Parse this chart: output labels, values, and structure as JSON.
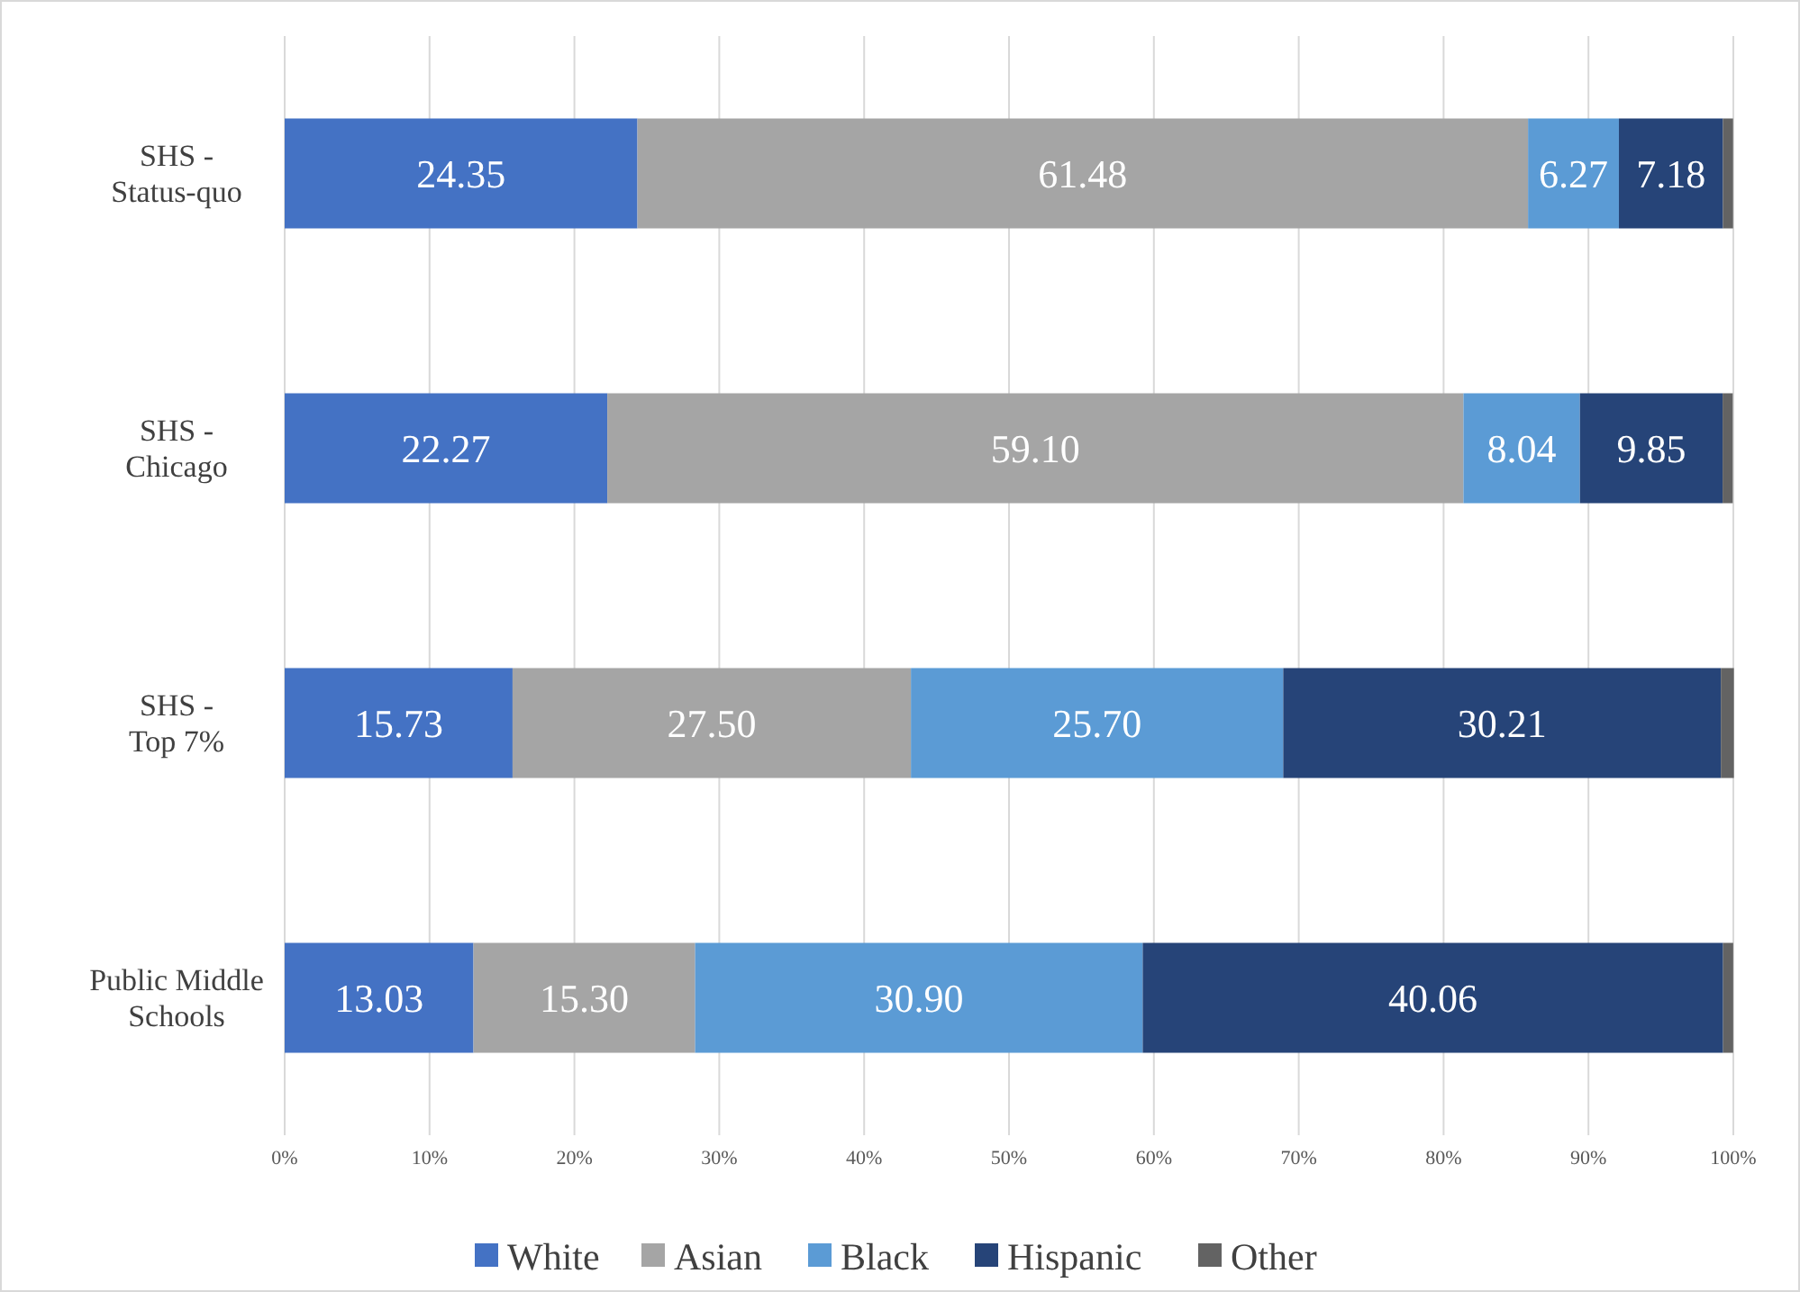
{
  "chart_data": {
    "type": "bar",
    "orientation": "horizontal",
    "stacked": true,
    "categories": [
      "SHS - Status-quo",
      "SHS - Chicago",
      "SHS - Top 7%",
      "Public Middle Schools"
    ],
    "series": [
      {
        "name": "White",
        "color": "#4472c4",
        "values": [
          24.35,
          22.27,
          15.73,
          13.03
        ],
        "value_labels": [
          "24.35",
          "22.27",
          "15.73",
          "13.03"
        ]
      },
      {
        "name": "Asian",
        "color": "#a5a5a5",
        "values": [
          61.48,
          59.1,
          27.5,
          15.3
        ],
        "value_labels": [
          "61.48",
          "59.10",
          "27.50",
          "15.30"
        ]
      },
      {
        "name": "Black",
        "color": "#5b9bd5",
        "values": [
          6.27,
          8.04,
          25.7,
          30.9
        ],
        "value_labels": [
          "6.27",
          "8.04",
          "25.70",
          "30.90"
        ]
      },
      {
        "name": "Hispanic",
        "color": "#264478",
        "values": [
          7.18,
          9.85,
          30.21,
          40.06
        ],
        "value_labels": [
          "7.18",
          "9.85",
          "30.21",
          "40.06"
        ]
      },
      {
        "name": "Other",
        "color": "#636363",
        "values": [
          0.7,
          0.7,
          0.9,
          0.7
        ],
        "value_labels": [
          null,
          null,
          null,
          null
        ]
      }
    ],
    "xlim": [
      0,
      100
    ],
    "xticks": [
      {
        "value": 0,
        "label": "0%"
      },
      {
        "value": 10,
        "label": "10%"
      },
      {
        "value": 20,
        "label": "20%"
      },
      {
        "value": 30,
        "label": "30%"
      },
      {
        "value": 40,
        "label": "40%"
      },
      {
        "value": 50,
        "label": "50%"
      },
      {
        "value": 60,
        "label": "60%"
      },
      {
        "value": 70,
        "label": "70%"
      },
      {
        "value": 80,
        "label": "80%"
      },
      {
        "value": 90,
        "label": "90%"
      },
      {
        "value": 100,
        "label": "100%"
      }
    ],
    "grid": "x",
    "legend": "bottom"
  }
}
